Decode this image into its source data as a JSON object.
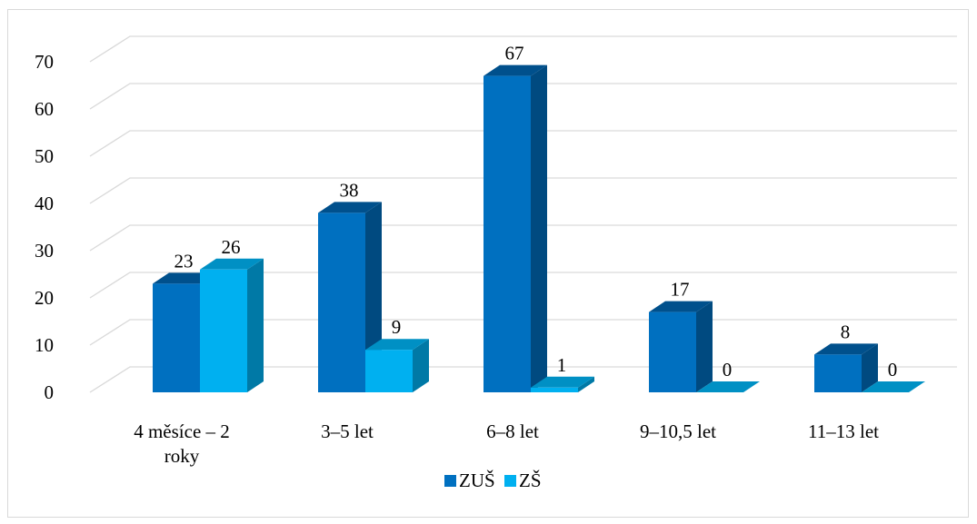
{
  "chart_data": {
    "type": "bar",
    "style": "3d-clustered-column",
    "categories": [
      [
        "4 měsíce – 2",
        "roky"
      ],
      [
        "3–5 let"
      ],
      [
        "6–8 let"
      ],
      [
        "9–10,5 let"
      ],
      [
        "11–13 let"
      ]
    ],
    "series": [
      {
        "name": "ZUŠ",
        "values": [
          23,
          38,
          67,
          17,
          8
        ],
        "color": "#0070c0",
        "side_color": "#004a80",
        "top_color": "#00508c"
      },
      {
        "name": "ZŠ",
        "values": [
          26,
          9,
          1,
          0,
          0
        ],
        "color": "#00b0f0",
        "side_color": "#0079a6",
        "top_color": "#0090c4"
      }
    ],
    "y_ticks": [
      "0",
      "10",
      "20",
      "30",
      "40",
      "50",
      "60",
      "70"
    ],
    "ylim": [
      0,
      70
    ],
    "grid": true,
    "legend": "bottom-center"
  }
}
